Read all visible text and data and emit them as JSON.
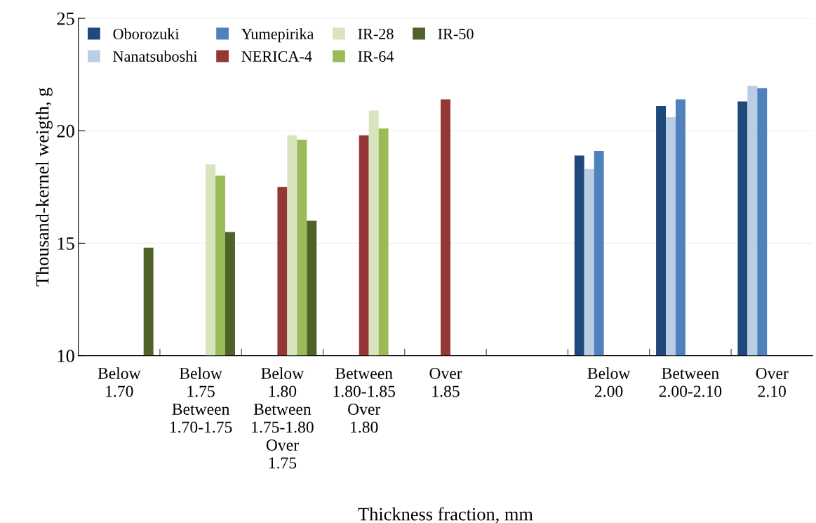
{
  "chart_data": {
    "type": "bar",
    "xlabel": "Thickness fraction, mm",
    "ylabel": "Thousand-kernel weigth, g",
    "categories": [
      "Below\n1.70",
      "Below\n1.75\nBetween\n1.70-1.75",
      "Below\n1.80\nBetween\n1.75-1.80\nOver\n1.75",
      "Between\n1.80-1.85\nOver\n1.80",
      "Over\n1.85",
      null,
      "Below\n2.00",
      "Between\n2.00-2.10",
      "Over\n2.10"
    ],
    "series": [
      {
        "name": "Oborozuki",
        "color": "#1f497d",
        "values": [
          null,
          null,
          null,
          null,
          null,
          null,
          18.9,
          21.1,
          21.3
        ]
      },
      {
        "name": "Nanatsuboshi",
        "color": "#b9cde5",
        "values": [
          null,
          null,
          null,
          null,
          null,
          null,
          18.3,
          20.6,
          22.0
        ]
      },
      {
        "name": "Yumepirika",
        "color": "#4f81bd",
        "values": [
          null,
          null,
          null,
          null,
          null,
          null,
          19.1,
          21.4,
          21.9
        ]
      },
      {
        "name": "NERICA-4",
        "color": "#953735",
        "values": [
          null,
          null,
          17.5,
          19.8,
          21.4,
          null,
          null,
          null,
          null
        ]
      },
      {
        "name": "IR-28",
        "color": "#d7e4bd",
        "values": [
          null,
          18.5,
          19.8,
          20.9,
          null,
          null,
          null,
          null,
          null
        ]
      },
      {
        "name": "IR-64",
        "color": "#9bbb59",
        "values": [
          null,
          18.0,
          19.6,
          20.1,
          null,
          null,
          null,
          null,
          null
        ]
      },
      {
        "name": "IR-50",
        "color": "#4f6228",
        "values": [
          14.8,
          15.5,
          16.0,
          null,
          null,
          null,
          null,
          null,
          null
        ]
      }
    ],
    "ylim": [
      10,
      25
    ],
    "yticks": [
      10,
      15,
      20,
      25
    ],
    "grid": "y",
    "legend": "top left"
  }
}
